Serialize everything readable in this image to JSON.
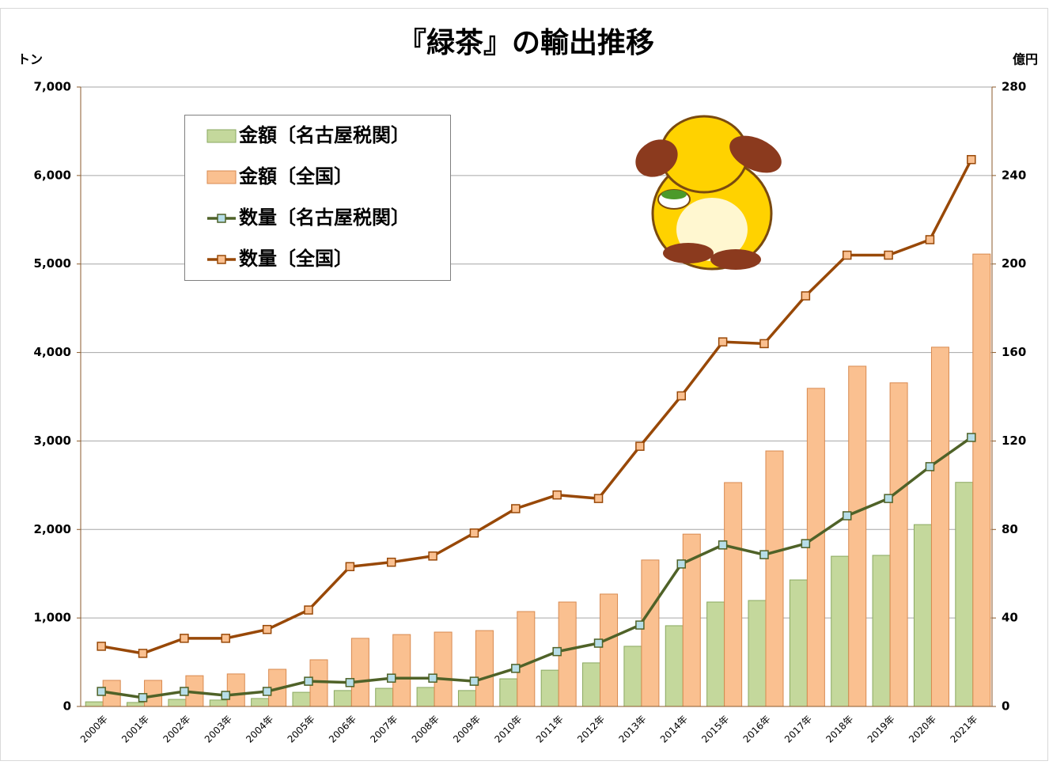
{
  "chart_data": {
    "type": "combo",
    "title": "『緑茶』の輸出推移",
    "y_label": "トン",
    "y2_label": "億円",
    "categories": [
      "2000年",
      "2001年",
      "2002年",
      "2003年",
      "2004年",
      "2005年",
      "2006年",
      "2007年",
      "2008年",
      "2009年",
      "2010年",
      "2011年",
      "2012年",
      "2013年",
      "2014年",
      "2015年",
      "2016年",
      "2017年",
      "2018年",
      "2019年",
      "2020年",
      "2021年"
    ],
    "series": [
      {
        "name": "金額〔名古屋税関〕",
        "type": "bar",
        "axis": "y2",
        "color": "#c4d89c",
        "edge": "#8aa860",
        "values": [
          2.1,
          1.8,
          3.2,
          2.9,
          3.6,
          6.4,
          7.2,
          8.2,
          8.6,
          7.2,
          12.5,
          16.4,
          19.7,
          27.2,
          36.5,
          47.2,
          47.9,
          57.2,
          67.9,
          68.3,
          82.2,
          101.3
        ]
      },
      {
        "name": "金額〔全国〕",
        "type": "bar",
        "axis": "y2",
        "color": "#fac090",
        "edge": "#d88a50",
        "values": [
          11.8,
          11.8,
          13.9,
          14.7,
          16.8,
          21.1,
          30.8,
          32.5,
          33.6,
          34.3,
          42.9,
          47.2,
          50.8,
          66.2,
          77.9,
          101.2,
          115.5,
          143.8,
          153.8,
          146.3,
          162.4,
          204.5
        ]
      },
      {
        "name": "数量〔名古屋税関〕",
        "type": "line",
        "axis": "y",
        "color": "#4f6228",
        "marker": "#b7dee8",
        "values": [
          170,
          100,
          170,
          125,
          170,
          285,
          270,
          320,
          320,
          285,
          430,
          620,
          715,
          920,
          1610,
          1825,
          1715,
          1840,
          2155,
          2350,
          2710,
          3040
        ]
      },
      {
        "name": "数量〔全国〕",
        "type": "line",
        "axis": "y",
        "color": "#984807",
        "marker": "#fac090",
        "values": [
          680,
          600,
          770,
          770,
          870,
          1090,
          1580,
          1630,
          1700,
          1960,
          2235,
          2390,
          2350,
          2940,
          3510,
          4120,
          4100,
          4640,
          5100,
          5100,
          5275,
          6180
        ]
      }
    ],
    "ylim": [
      0,
      7000
    ],
    "yticks": [
      0,
      {
        "value": 1000,
        "label": "1,000"
      },
      {
        "value": 2000,
        "label": "2,000"
      },
      {
        "value": 3000,
        "label": "3,000"
      },
      {
        "value": 4000,
        "label": "4,000"
      },
      {
        "value": 5000,
        "label": "5,000"
      },
      {
        "value": 6000,
        "label": "6,000"
      },
      {
        "value": 7000,
        "label": "7,000"
      }
    ],
    "y2lim": [
      0,
      280
    ],
    "y2ticks": [
      0,
      40,
      80,
      120,
      160,
      200,
      240,
      280
    ],
    "grid": true
  }
}
